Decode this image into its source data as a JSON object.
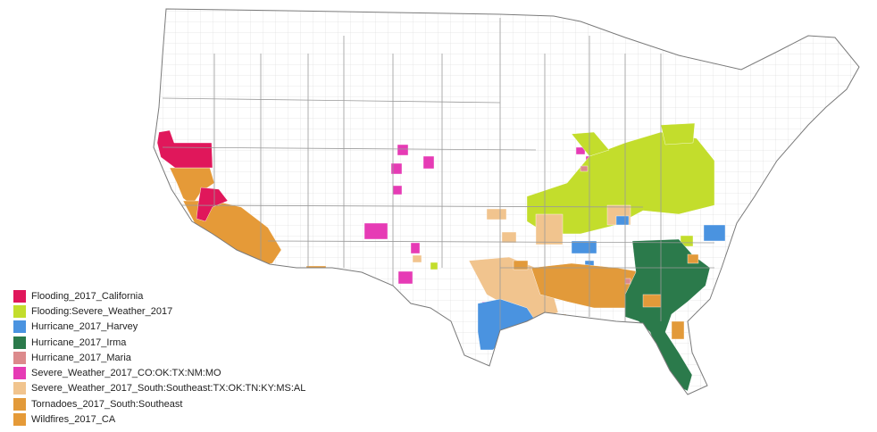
{
  "map": {
    "region": "contiguous-united-states-counties",
    "background_color": "#ffffff",
    "county_border_color": "#d0d0d0",
    "state_border_color": "#8a8a8a"
  },
  "legend": {
    "items": [
      {
        "label": "Flooding_2017_California",
        "color": "#e0175b"
      },
      {
        "label": "Flooding:Severe_Weather_2017",
        "color": "#c3dd2c"
      },
      {
        "label": "Hurricane_2017_Harvey",
        "color": "#4a93e0"
      },
      {
        "label": "Hurricane_2017_Irma",
        "color": "#2b7a4b"
      },
      {
        "label": "Hurricane_2017_Maria",
        "color": "#dc8a8c"
      },
      {
        "label": "Severe_Weather_2017_CO:OK:TX:NM:MO",
        "color": "#e63bb5"
      },
      {
        "label": "Severe_Weather_2017_South:Southeast:TX:OK:TN:KY:MS:AL",
        "color": "#f1c48e"
      },
      {
        "label": "Tornadoes_2017_South:Southeast",
        "color": "#e29a3a"
      },
      {
        "label": "Wildfires_2017_CA",
        "color": "#e59a38"
      }
    ]
  }
}
